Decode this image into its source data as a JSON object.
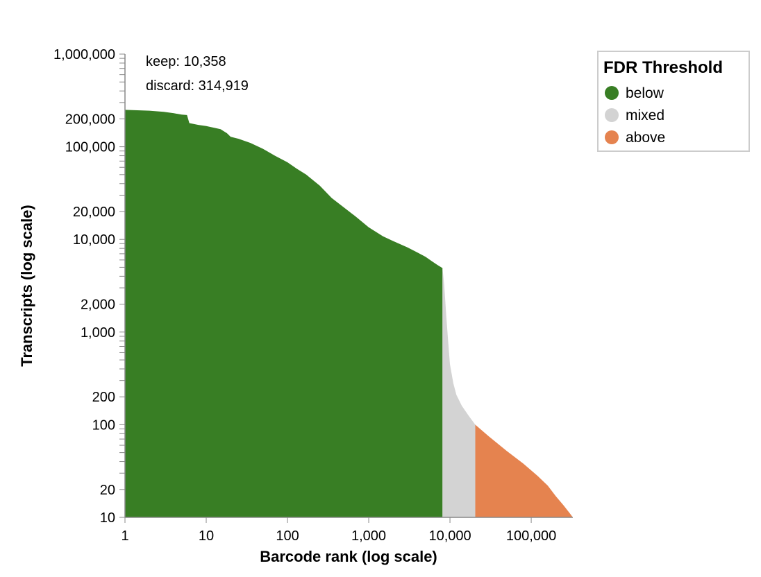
{
  "chart_data": {
    "type": "area",
    "xlabel": "Barcode rank (log scale)",
    "ylabel": "Transcripts (log scale)",
    "x_scale": "log",
    "y_scale": "log",
    "xlim": [
      1,
      325277
    ],
    "ylim": [
      10,
      1000000
    ],
    "x_ticks": [
      {
        "value": 1,
        "label": "1"
      },
      {
        "value": 10,
        "label": "10"
      },
      {
        "value": 100,
        "label": "100"
      },
      {
        "value": 1000,
        "label": "1,000"
      },
      {
        "value": 10000,
        "label": "10,000"
      },
      {
        "value": 100000,
        "label": "100,000"
      }
    ],
    "y_ticks": [
      {
        "value": 10,
        "label": "10"
      },
      {
        "value": 20,
        "label": "20"
      },
      {
        "value": 100,
        "label": "100"
      },
      {
        "value": 200,
        "label": "200"
      },
      {
        "value": 1000,
        "label": "1,000"
      },
      {
        "value": 2000,
        "label": "2,000"
      },
      {
        "value": 10000,
        "label": "10,000"
      },
      {
        "value": 20000,
        "label": "20,000"
      },
      {
        "value": 100000,
        "label": "100,000"
      },
      {
        "value": 200000,
        "label": "200,000"
      },
      {
        "value": 1000000,
        "label": "1,000,000"
      }
    ],
    "annotations": [
      "keep: 10,358",
      "discard: 314,919"
    ],
    "legend": {
      "title": "FDR Threshold",
      "placement": "top-right",
      "items": [
        {
          "label": "below",
          "color": "#387e24"
        },
        {
          "label": "mixed",
          "color": "#d3d3d3"
        },
        {
          "label": "above",
          "color": "#e5834f"
        }
      ]
    },
    "series": [
      {
        "name": "below",
        "color": "#387e24",
        "points": [
          [
            1,
            250000
          ],
          [
            2,
            245000
          ],
          [
            3,
            238000
          ],
          [
            4,
            230000
          ],
          [
            5,
            222000
          ],
          [
            5.8,
            220000
          ],
          [
            6.2,
            180000
          ],
          [
            8,
            172000
          ],
          [
            10,
            167000
          ],
          [
            15,
            155000
          ],
          [
            18,
            140000
          ],
          [
            20,
            128000
          ],
          [
            25,
            122000
          ],
          [
            35,
            110000
          ],
          [
            50,
            95000
          ],
          [
            70,
            80000
          ],
          [
            100,
            68000
          ],
          [
            130,
            58000
          ],
          [
            170,
            50000
          ],
          [
            250,
            38000
          ],
          [
            350,
            28000
          ],
          [
            500,
            22000
          ],
          [
            700,
            17500
          ],
          [
            1000,
            13500
          ],
          [
            1500,
            10800
          ],
          [
            2000,
            9600
          ],
          [
            3000,
            8200
          ],
          [
            4000,
            7200
          ],
          [
            5000,
            6500
          ],
          [
            6000,
            5800
          ],
          [
            7000,
            5300
          ],
          [
            8100,
            4900
          ]
        ]
      },
      {
        "name": "mixed",
        "color": "#d3d3d3",
        "points": [
          [
            8100,
            4900
          ],
          [
            8500,
            3200
          ],
          [
            9000,
            1500
          ],
          [
            9500,
            800
          ],
          [
            10000,
            450
          ],
          [
            11000,
            280
          ],
          [
            12000,
            210
          ],
          [
            14000,
            160
          ],
          [
            17000,
            125
          ],
          [
            20500,
            100
          ]
        ]
      },
      {
        "name": "above",
        "color": "#e5834f",
        "points": [
          [
            20500,
            100
          ],
          [
            30000,
            75
          ],
          [
            50000,
            52
          ],
          [
            80000,
            38
          ],
          [
            120000,
            28
          ],
          [
            160000,
            22
          ],
          [
            200000,
            17
          ],
          [
            250000,
            13.5
          ],
          [
            300000,
            11
          ],
          [
            325277,
            10
          ]
        ]
      }
    ]
  }
}
